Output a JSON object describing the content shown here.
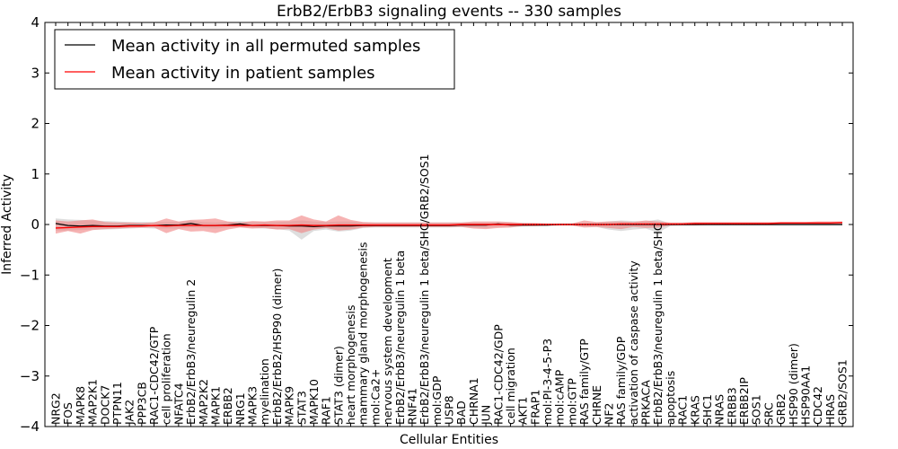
{
  "chart_data": {
    "type": "line",
    "title": "ErbB2/ErbB3 signaling events -- 330 samples",
    "xlabel": "Cellular Entities",
    "ylabel": "Inferred Activity",
    "ylim": [
      -4,
      4
    ],
    "yticks": [
      "−4",
      "−3",
      "−2",
      "−1",
      "0",
      "1",
      "2",
      "3",
      "4"
    ],
    "grid": false,
    "legend_position": "top-left",
    "categories": [
      "NRG2",
      "FOS",
      "MAPK8",
      "MAP2K1",
      "DOCK7",
      "PTPN11",
      "JAK2",
      "PPP3CB",
      "RAC1-CDC42/GTP",
      "cell proliferation",
      "NFATC4",
      "ErbB2/ErbB3/neuregulin 2",
      "MAP2K2",
      "MAPK1",
      "ERBB2",
      "NRG1",
      "MAPK3",
      "myelination",
      "ErbB2/ErbB2/HSP90 (dimer)",
      "MAPK9",
      "STAT3",
      "MAPK10",
      "RAF1",
      "STAT3 (dimer)",
      "heart morphogenesis",
      "mammary gland morphogenesis",
      "mol:Ca2+",
      "nervous system development",
      "ErbB2/ErbB3/neuregulin 1 beta",
      "RNF41",
      "ErbB2/ErbB3/neuregulin 1 beta/SHC/GRB2/SOS1",
      "mol:GDP",
      "USP8",
      "BAD",
      "CHRNA1",
      "JUN",
      "RAC1-CDC42/GDP",
      "cell migration",
      "AKT1",
      "FRAP1",
      "mol:PI-3-4-5-P3",
      "mol:cAMP",
      "mol:GTP",
      "RAS family/GTP",
      "CHRNE",
      "NF2",
      "RAS family/GDP",
      "activation of caspase activity",
      "PRKACA",
      "ErbB2/ErbB3/neuregulin 1 beta/SHC",
      "apoptosis",
      "RAC1",
      "KRAS",
      "SHC1",
      "NRAS",
      "ERBB3",
      "ERBB2IP",
      "SOS1",
      "SRC",
      "GRB2",
      "HSP90 (dimer)",
      "HSP90AA1",
      "CDC42",
      "HRAS",
      "GRB2/SOS1"
    ],
    "series": [
      {
        "name": "Mean activity in all permuted samples",
        "color": "#000000",
        "values": [
          0.02,
          -0.02,
          -0.03,
          -0.02,
          -0.03,
          -0.03,
          -0.02,
          -0.02,
          -0.02,
          -0.01,
          -0.01,
          0.02,
          -0.02,
          -0.02,
          -0.01,
          0.01,
          -0.02,
          -0.02,
          -0.02,
          -0.03,
          -0.03,
          -0.04,
          -0.03,
          -0.03,
          -0.03,
          -0.02,
          -0.02,
          -0.02,
          -0.02,
          -0.02,
          -0.02,
          -0.02,
          -0.02,
          -0.01,
          -0.01,
          -0.01,
          0.01,
          -0.01,
          -0.01,
          -0.01,
          -0.01,
          0.0,
          0.0,
          0.0,
          0.0,
          0.0,
          0.0,
          0.0,
          0.0,
          0.0,
          0.0,
          0.0,
          0.0,
          0.0,
          0.0,
          0.0,
          0.0,
          0.0,
          0.0,
          0.0,
          0.0,
          0.0,
          0.0,
          0.0,
          0.0
        ],
        "lower": [
          -0.12,
          -0.12,
          -0.11,
          -0.1,
          -0.1,
          -0.09,
          -0.08,
          -0.07,
          -0.08,
          -0.08,
          -0.08,
          -0.06,
          -0.07,
          -0.08,
          -0.06,
          -0.05,
          -0.07,
          -0.08,
          -0.09,
          -0.12,
          -0.3,
          -0.13,
          -0.1,
          -0.14,
          -0.12,
          -0.07,
          -0.06,
          -0.06,
          -0.06,
          -0.06,
          -0.06,
          -0.06,
          -0.06,
          -0.05,
          -0.06,
          -0.07,
          -0.05,
          -0.05,
          -0.04,
          -0.03,
          -0.03,
          -0.02,
          -0.02,
          -0.04,
          -0.05,
          -0.1,
          -0.13,
          -0.1,
          -0.08,
          -0.16,
          -0.03,
          -0.02,
          -0.02,
          -0.02,
          -0.02,
          -0.02,
          -0.02,
          -0.02,
          -0.02,
          -0.02,
          -0.02,
          -0.02,
          -0.02,
          -0.02,
          -0.02
        ],
        "upper": [
          0.12,
          0.1,
          0.09,
          0.08,
          0.07,
          0.06,
          0.05,
          0.05,
          0.05,
          0.05,
          0.05,
          0.08,
          0.05,
          0.04,
          0.05,
          0.07,
          0.05,
          0.05,
          0.05,
          0.06,
          0.08,
          0.06,
          0.05,
          0.06,
          0.06,
          0.04,
          0.04,
          0.04,
          0.04,
          0.04,
          0.04,
          0.04,
          0.04,
          0.04,
          0.04,
          0.04,
          0.05,
          0.04,
          0.03,
          0.02,
          0.02,
          0.02,
          0.02,
          0.03,
          0.04,
          0.06,
          0.08,
          0.07,
          0.06,
          0.1,
          0.02,
          0.02,
          0.02,
          0.02,
          0.02,
          0.02,
          0.02,
          0.02,
          0.02,
          0.02,
          0.02,
          0.02,
          0.02,
          0.02,
          0.02
        ]
      },
      {
        "name": "Mean activity in patient samples",
        "color": "#ff0000",
        "band_color": "#f08080",
        "values": [
          -0.07,
          -0.06,
          -0.05,
          -0.04,
          -0.04,
          -0.04,
          -0.03,
          -0.03,
          -0.02,
          -0.03,
          -0.02,
          -0.02,
          -0.02,
          -0.02,
          -0.02,
          -0.02,
          -0.02,
          -0.01,
          -0.02,
          -0.02,
          -0.01,
          -0.02,
          -0.02,
          -0.01,
          -0.01,
          -0.01,
          -0.01,
          -0.01,
          -0.01,
          -0.01,
          -0.01,
          -0.01,
          -0.01,
          0.0,
          0.0,
          0.0,
          0.0,
          0.0,
          0.0,
          0.0,
          0.0,
          0.0,
          0.0,
          0.0,
          0.0,
          0.0,
          0.01,
          0.01,
          0.01,
          0.01,
          0.01,
          0.01,
          0.02,
          0.02,
          0.02,
          0.02,
          0.02,
          0.02,
          0.02,
          0.03,
          0.03,
          0.03,
          0.03,
          0.03,
          0.04
        ],
        "lower": [
          -0.18,
          -0.13,
          -0.18,
          -0.11,
          -0.09,
          -0.08,
          -0.07,
          -0.06,
          -0.06,
          -0.17,
          -0.09,
          -0.14,
          -0.13,
          -0.17,
          -0.1,
          -0.06,
          -0.08,
          -0.07,
          -0.1,
          -0.09,
          -0.17,
          -0.1,
          -0.07,
          -0.12,
          -0.1,
          -0.06,
          -0.05,
          -0.05,
          -0.05,
          -0.05,
          -0.05,
          -0.05,
          -0.05,
          -0.05,
          -0.08,
          -0.09,
          -0.07,
          -0.06,
          -0.03,
          -0.03,
          -0.02,
          -0.02,
          -0.02,
          -0.06,
          -0.05,
          -0.07,
          -0.09,
          -0.05,
          -0.07,
          -0.06,
          -0.02,
          -0.02,
          -0.02,
          -0.01,
          -0.01,
          -0.01,
          -0.01,
          -0.01,
          -0.01,
          -0.01,
          -0.01,
          -0.01,
          -0.01,
          -0.01,
          0.0
        ],
        "upper": [
          0.08,
          0.06,
          0.08,
          0.1,
          0.05,
          0.04,
          0.04,
          0.03,
          0.04,
          0.12,
          0.06,
          0.09,
          0.1,
          0.12,
          0.06,
          0.04,
          0.07,
          0.06,
          0.08,
          0.08,
          0.18,
          0.1,
          0.06,
          0.18,
          0.09,
          0.05,
          0.04,
          0.04,
          0.04,
          0.04,
          0.04,
          0.04,
          0.04,
          0.04,
          0.06,
          0.06,
          0.06,
          0.05,
          0.03,
          0.03,
          0.02,
          0.02,
          0.02,
          0.08,
          0.05,
          0.06,
          0.06,
          0.05,
          0.08,
          0.06,
          0.04,
          0.04,
          0.05,
          0.05,
          0.05,
          0.05,
          0.05,
          0.05,
          0.05,
          0.05,
          0.05,
          0.05,
          0.06,
          0.06,
          0.06
        ]
      }
    ]
  }
}
